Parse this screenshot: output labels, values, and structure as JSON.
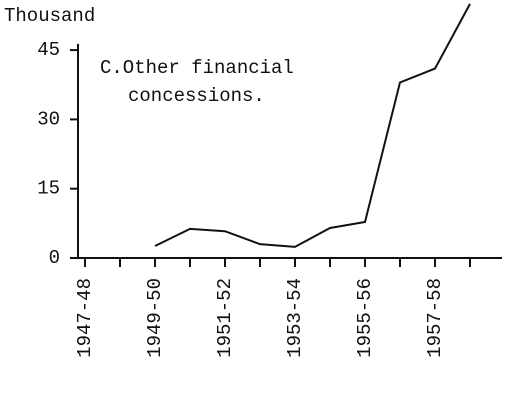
{
  "chart_data": {
    "type": "line",
    "ylabel": "Thousand",
    "annotation": [
      "C.Other financial",
      "concessions."
    ],
    "categories": [
      "1947-48",
      null,
      "1949-50",
      null,
      "1951-52",
      null,
      "1953-54",
      null,
      "1955-56",
      null,
      "1957-58",
      null
    ],
    "series": [
      {
        "name": null,
        "color": "#111111",
        "values": [
          null,
          null,
          2.6,
          6.3,
          5.8,
          3,
          2.4,
          6.5,
          7.8,
          38,
          41,
          55
        ]
      }
    ],
    "ylim": [
      0,
      55
    ],
    "yticks": [
      0,
      15,
      30,
      45
    ],
    "grid": false
  }
}
